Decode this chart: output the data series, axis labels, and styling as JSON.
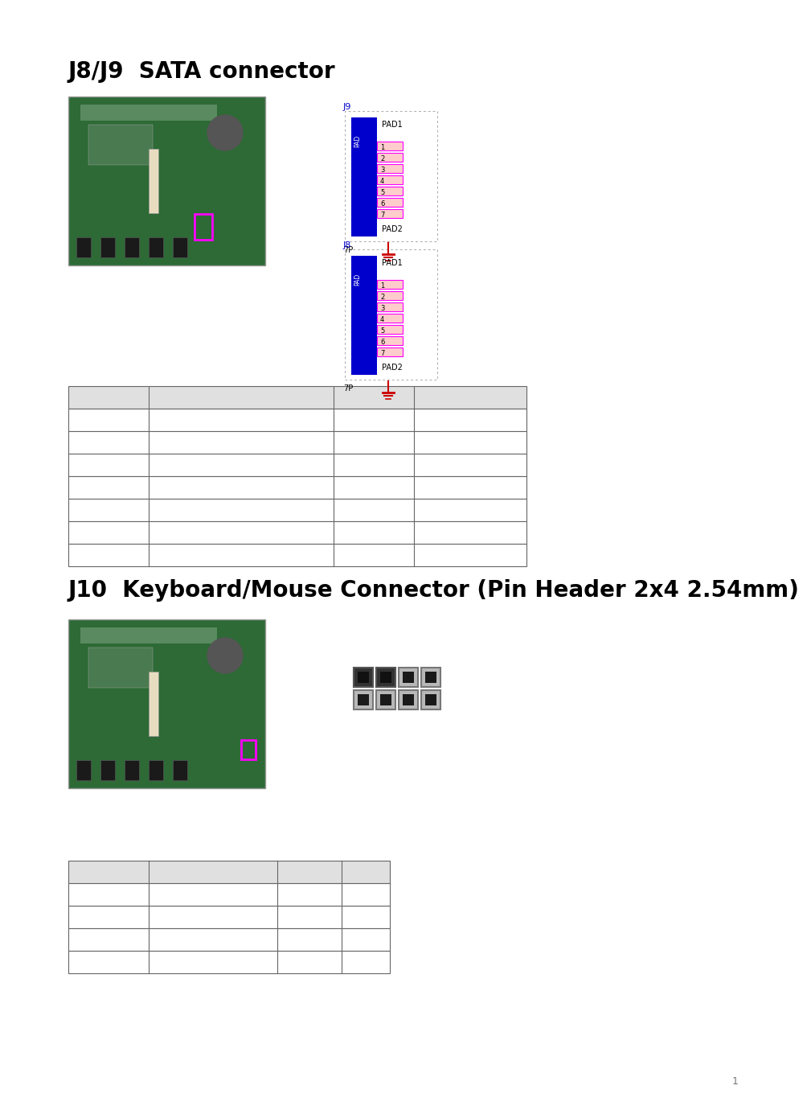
{
  "title1": "J8/J9  SATA connector",
  "title2": "J10  Keyboard/Mouse Connector (Pin Header 2x4 2.54mm)",
  "bg_color": "#ffffff",
  "page_number": "1",
  "table1_header_color": "#e0e0e0",
  "table2_header_color": "#e0e0e0",
  "connector_blue": "#0000cc",
  "connector_red": "#cc0000",
  "connector_pink": "#ff00ff"
}
